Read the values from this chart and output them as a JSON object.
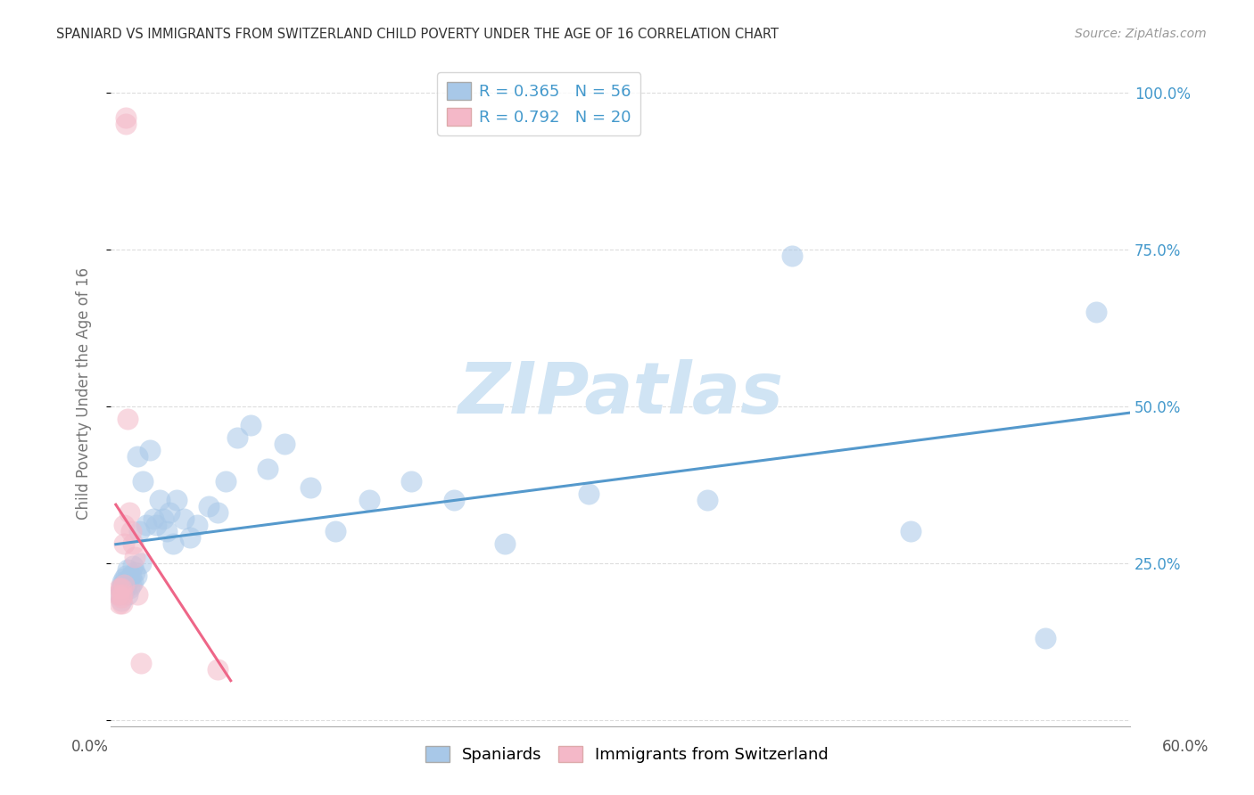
{
  "title": "SPANIARD VS IMMIGRANTS FROM SWITZERLAND CHILD POVERTY UNDER THE AGE OF 16 CORRELATION CHART",
  "source": "Source: ZipAtlas.com",
  "ylabel": "Child Poverty Under the Age of 16",
  "blue_R": 0.365,
  "blue_N": 56,
  "pink_R": 0.792,
  "pink_N": 20,
  "blue_color": "#a8c8e8",
  "pink_color": "#f4b8c8",
  "blue_line_color": "#5599cc",
  "pink_line_color": "#ee6688",
  "legend_label_blue": "Spaniards",
  "legend_label_pink": "Immigrants from Switzerland",
  "blue_scatter_x": [
    0.002,
    0.003,
    0.003,
    0.004,
    0.004,
    0.005,
    0.005,
    0.006,
    0.006,
    0.007,
    0.007,
    0.007,
    0.008,
    0.008,
    0.009,
    0.009,
    0.01,
    0.01,
    0.011,
    0.012,
    0.013,
    0.014,
    0.015,
    0.016,
    0.018,
    0.02,
    0.022,
    0.024,
    0.026,
    0.028,
    0.03,
    0.032,
    0.034,
    0.036,
    0.04,
    0.044,
    0.048,
    0.055,
    0.06,
    0.065,
    0.072,
    0.08,
    0.09,
    0.1,
    0.115,
    0.13,
    0.15,
    0.175,
    0.2,
    0.23,
    0.28,
    0.35,
    0.4,
    0.47,
    0.55,
    0.58
  ],
  "blue_scatter_y": [
    0.2,
    0.21,
    0.19,
    0.22,
    0.215,
    0.205,
    0.225,
    0.215,
    0.23,
    0.22,
    0.2,
    0.24,
    0.21,
    0.225,
    0.215,
    0.23,
    0.22,
    0.245,
    0.235,
    0.23,
    0.42,
    0.3,
    0.25,
    0.38,
    0.31,
    0.43,
    0.32,
    0.31,
    0.35,
    0.32,
    0.3,
    0.33,
    0.28,
    0.35,
    0.32,
    0.29,
    0.31,
    0.34,
    0.33,
    0.38,
    0.45,
    0.47,
    0.4,
    0.44,
    0.37,
    0.3,
    0.35,
    0.38,
    0.35,
    0.28,
    0.36,
    0.35,
    0.74,
    0.3,
    0.13,
    0.65
  ],
  "pink_scatter_x": [
    0.001,
    0.002,
    0.002,
    0.003,
    0.003,
    0.004,
    0.004,
    0.005,
    0.005,
    0.005,
    0.006,
    0.006,
    0.007,
    0.008,
    0.009,
    0.01,
    0.011,
    0.013,
    0.015,
    0.06
  ],
  "pink_scatter_y": [
    0.2,
    0.21,
    0.185,
    0.21,
    0.195,
    0.2,
    0.185,
    0.31,
    0.28,
    0.215,
    0.96,
    0.95,
    0.48,
    0.33,
    0.3,
    0.28,
    0.26,
    0.2,
    0.09,
    0.08
  ],
  "watermark_text": "ZIPatlas",
  "watermark_color": "#d0e4f4",
  "background_color": "#ffffff",
  "grid_color": "#dddddd",
  "xlim": [
    0.0,
    0.6
  ],
  "ylim": [
    0.0,
    1.05
  ]
}
